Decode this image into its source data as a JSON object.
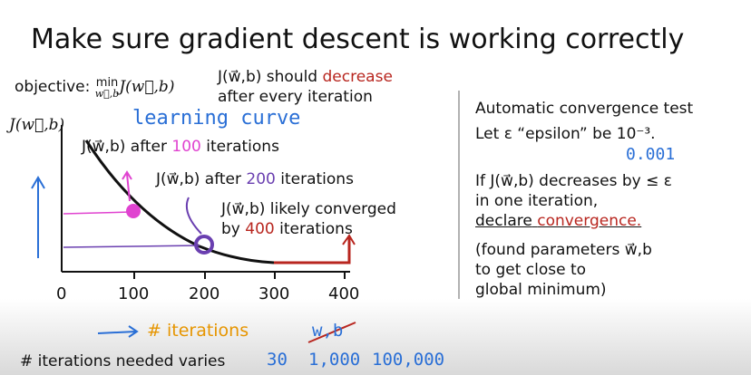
{
  "title": "Make sure gradient descent is working correctly",
  "objective": {
    "label": "objective:",
    "min": "min",
    "min_sub": "w⃗,b",
    "function": "J(w⃗,b)"
  },
  "note": {
    "prefix": "J(w⃗,b) should",
    "highlight": "decrease",
    "suffix": "after every iteration"
  },
  "chart": {
    "y_label": "J(w⃗,b)",
    "handwritten_title": "learning curve",
    "annotations": [
      {
        "prefix": "J(w⃗,b) after",
        "number": "100",
        "suffix": "iterations"
      },
      {
        "prefix": "J(w⃗,b) after",
        "number": "200",
        "suffix": "iterations"
      },
      {
        "line1": "J(w⃗,b) likely converged",
        "prefix": "by",
        "number": "400",
        "suffix": "iterations"
      }
    ],
    "xticks": [
      "0",
      "100",
      "200",
      "300",
      "400"
    ],
    "x_label": "# iterations",
    "crossed_out": "w,b"
  },
  "footer": {
    "text": "# iterations needed varies",
    "examples": [
      "30",
      "1,000",
      "100,000"
    ]
  },
  "right_panel": {
    "heading": "Automatic convergence test",
    "epsilon_line": "Let ε “epsilon” be 10⁻³.",
    "epsilon_handwritten": "0.001",
    "rule_line1": "If J(w⃗,b) decreases by ≤ ε",
    "rule_line2": "in one iteration,",
    "rule_prefix": "declare",
    "rule_highlight": "convergence.",
    "paren_lines": [
      "(found parameters w⃗,b",
      "to get close to",
      "global minimum)"
    ]
  }
}
